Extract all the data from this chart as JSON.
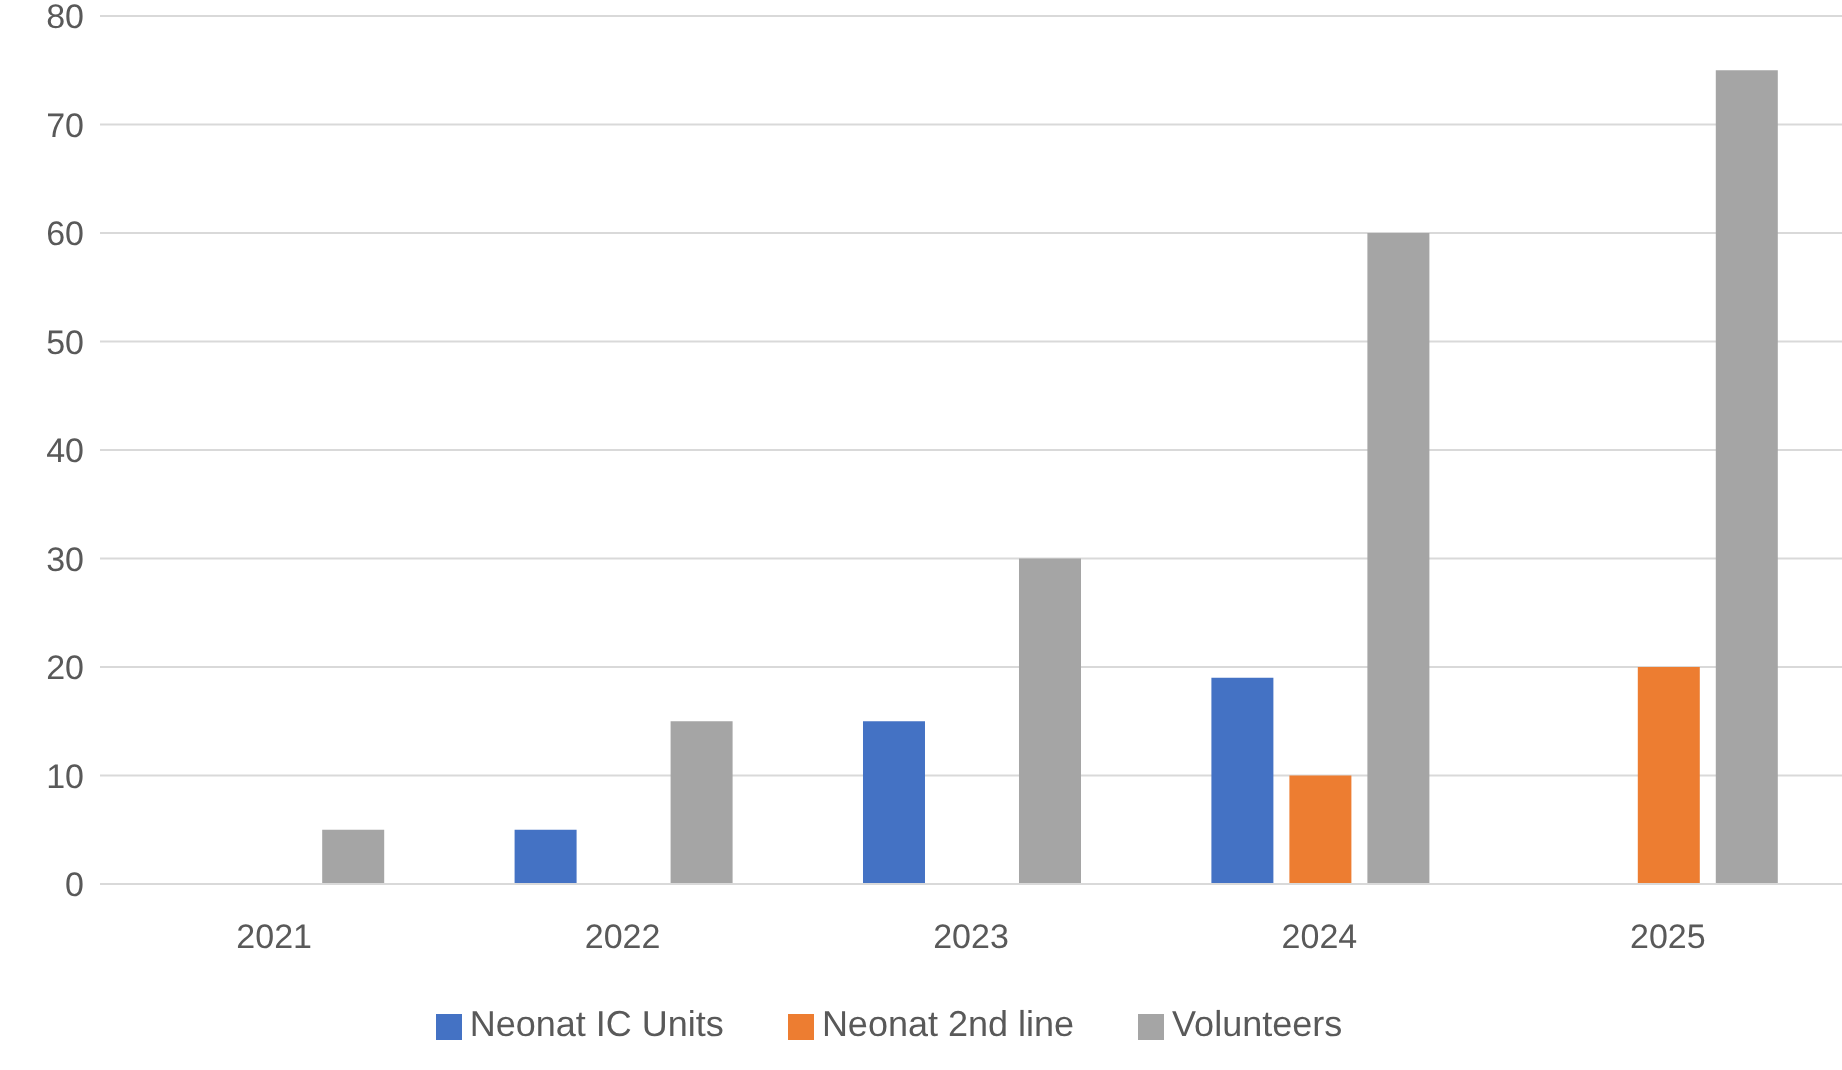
{
  "chart_data": {
    "type": "bar",
    "categories": [
      "2021",
      "2022",
      "2023",
      "2024",
      "2025"
    ],
    "series": [
      {
        "name": "Neonat IC Units",
        "color": "#4472c4",
        "values": [
          0,
          5,
          15,
          19,
          0
        ]
      },
      {
        "name": "Neonat 2nd line",
        "color": "#ed7d31",
        "values": [
          0,
          0,
          0,
          10,
          20
        ]
      },
      {
        "name": "Volunteers",
        "color": "#a5a5a5",
        "values": [
          5,
          15,
          30,
          60,
          75
        ]
      }
    ],
    "ylim": [
      0,
      80
    ],
    "yticks": [
      0,
      10,
      20,
      30,
      40,
      50,
      60,
      70,
      80
    ],
    "grid": "y",
    "legend": "bottom"
  }
}
